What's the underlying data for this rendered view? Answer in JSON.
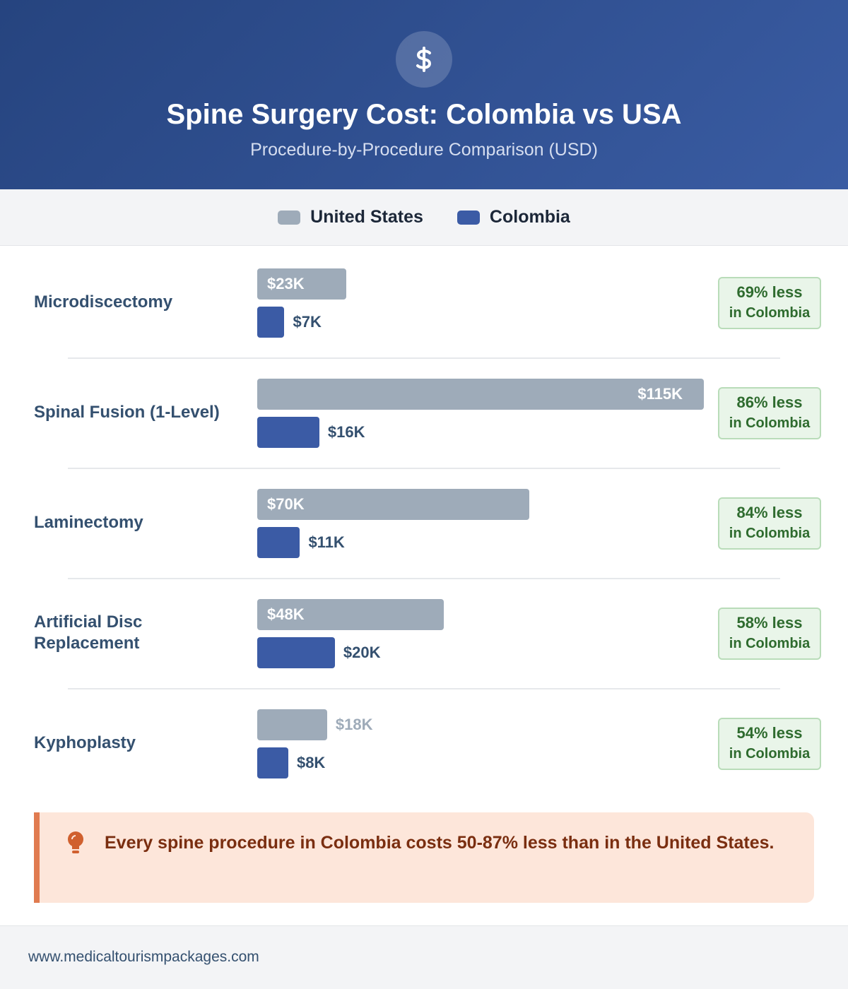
{
  "title": "Spine Surgery Cost: Colombia vs USA",
  "subtitle": "Procedure-by-Procedure Comparison (USD)",
  "chart_data": {
    "type": "bar",
    "orientation": "horizontal",
    "categories": [
      "Microdiscectomy",
      "Spinal Fusion (1-Level)",
      "Laminectomy",
      "Artificial Disc Replacement",
      "Kyphoplasty"
    ],
    "series": [
      {
        "name": "United States",
        "color": "#9eabb9",
        "values": [
          23,
          115,
          70,
          48,
          18
        ],
        "value_labels": [
          "$23K",
          "$115K",
          "$70K",
          "$48K",
          "$18K"
        ]
      },
      {
        "name": "Colombia",
        "color": "#3b5ba5",
        "values": [
          7,
          16,
          11,
          20,
          8
        ],
        "value_labels": [
          "$7K",
          "$16K",
          "$11K",
          "$20K",
          "$8K"
        ]
      }
    ],
    "savings": [
      69,
      86,
      84,
      58,
      54
    ],
    "savings_labels": [
      "69% less",
      "86% less",
      "84% less",
      "58% less",
      "54% less"
    ],
    "savings_note": "in Colombia"
  },
  "callout": "Every spine procedure in Colombia costs 50-87% less than in the United States.",
  "footer": "www.medicaltourismpackages.com"
}
